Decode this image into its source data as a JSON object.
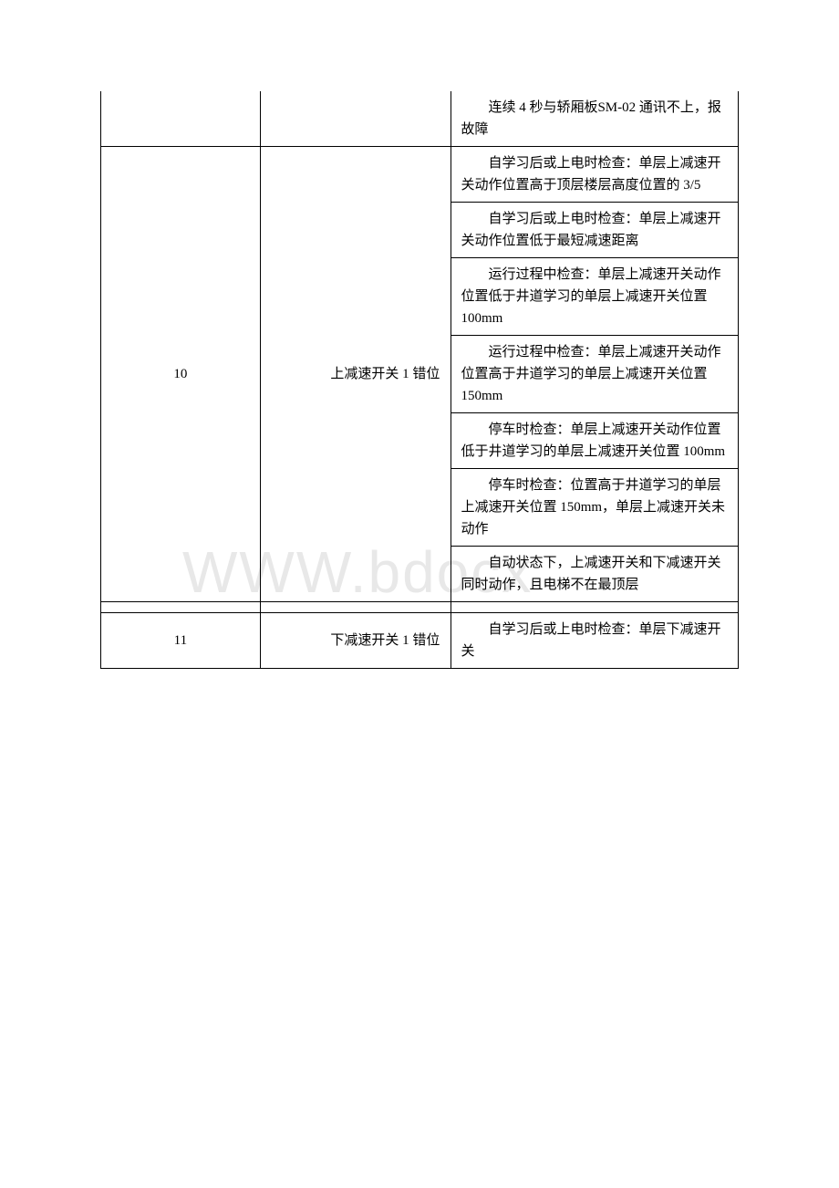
{
  "watermark": "WWW.bdocx",
  "table": {
    "rows": [
      {
        "code": "",
        "name": "",
        "desc": "　　连续 4 秒与轿厢板SM-02 通讯不上，报故障",
        "codeRowspan": 1,
        "nameRowspan": 1,
        "noTop": true
      },
      {
        "code": "10",
        "name": "上减速开关 1 错位",
        "desc": "　　自学习后或上电时检查：单层上减速开关动作位置高于顶层楼层高度位置的 3/5",
        "codeRowspan": 7,
        "nameRowspan": 7
      },
      {
        "desc": "　　自学习后或上电时检查：单层上减速开关动作位置低于最短减速距离"
      },
      {
        "desc": "　　运行过程中检查：单层上减速开关动作位置低于井道学习的单层上减速开关位置100mm"
      },
      {
        "desc": "　　运行过程中检查：单层上减速开关动作位置高于井道学习的单层上减速开关位置150mm"
      },
      {
        "desc": "　　停车时检查：单层上减速开关动作位置低于井道学习的单层上减速开关位置 100mm"
      },
      {
        "desc": "　　停车时检查：位置高于井道学习的单层上减速开关位置 150mm，单层上减速开关未动作"
      },
      {
        "desc": "　　自动状态下，上减速开关和下减速开关同时动作，且电梯不在最顶层"
      },
      {
        "empty": true
      },
      {
        "code": "11",
        "name": "下减速开关 1 错位",
        "desc": "　　自学习后或上电时检查：单层下减速开关",
        "codeRowspan": 1,
        "nameRowspan": 1
      }
    ]
  }
}
